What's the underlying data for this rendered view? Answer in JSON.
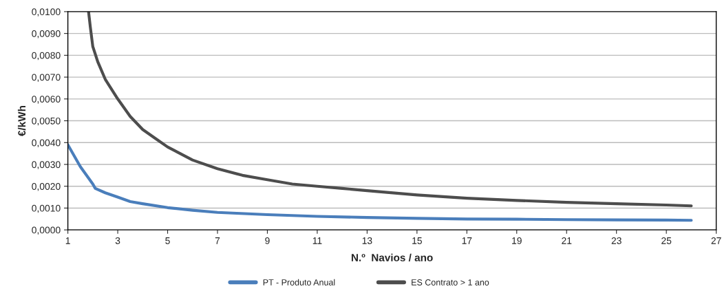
{
  "chart_data": {
    "type": "line",
    "xlabel": "N.º  Navios / ano",
    "ylabel": "€/kWh",
    "xlim": [
      1,
      27
    ],
    "xticks": [
      1,
      3,
      5,
      7,
      9,
      11,
      13,
      15,
      17,
      19,
      21,
      23,
      25,
      27
    ],
    "ylim": [
      0,
      0.01
    ],
    "yticks": [
      {
        "value": 0,
        "label": "0,0000"
      },
      {
        "value": 0.001,
        "label": "0,0010"
      },
      {
        "value": 0.002,
        "label": "0,0020"
      },
      {
        "value": 0.003,
        "label": "0,0030"
      },
      {
        "value": 0.004,
        "label": "0,0040"
      },
      {
        "value": 0.005,
        "label": "0,0050"
      },
      {
        "value": 0.006,
        "label": "0,0060"
      },
      {
        "value": 0.007,
        "label": "0,0070"
      },
      {
        "value": 0.008,
        "label": "0,0080"
      },
      {
        "value": 0.009,
        "label": "0,0090"
      },
      {
        "value": 0.01,
        "label": "0,0100"
      }
    ],
    "grid": "y",
    "legend": "bottom",
    "marker": "none",
    "line_style": "solid",
    "series": [
      {
        "name": "PT - Produto Anual",
        "color": "#4a7ebb",
        "x": [
          1,
          1.5,
          2,
          2.1,
          2.5,
          3,
          3.5,
          4,
          5,
          6,
          7,
          9,
          11,
          13,
          15,
          17,
          19,
          21,
          23,
          25,
          26
        ],
        "values": [
          0.0039,
          0.0029,
          0.0021,
          0.0019,
          0.0017,
          0.0015,
          0.0013,
          0.0012,
          0.00102,
          0.0009,
          0.0008,
          0.0007,
          0.00062,
          0.00057,
          0.00053,
          0.0005,
          0.00049,
          0.00047,
          0.00046,
          0.00045,
          0.00044
        ]
      },
      {
        "name": "ES Contrato > 1 ano",
        "color": "#4d4d4d",
        "x": [
          1.83,
          1.9,
          2,
          2.2,
          2.5,
          3,
          3.5,
          4,
          4.5,
          5,
          6,
          7,
          8,
          9,
          10,
          11,
          12,
          13,
          15,
          17,
          19,
          21,
          23,
          25,
          26
        ],
        "values": [
          0.01,
          0.0093,
          0.0084,
          0.0077,
          0.0069,
          0.006,
          0.0052,
          0.0046,
          0.0042,
          0.0038,
          0.0032,
          0.0028,
          0.0025,
          0.0023,
          0.0021,
          0.002,
          0.0019,
          0.0018,
          0.0016,
          0.00145,
          0.00135,
          0.00126,
          0.0012,
          0.00114,
          0.0011
        ]
      }
    ]
  }
}
